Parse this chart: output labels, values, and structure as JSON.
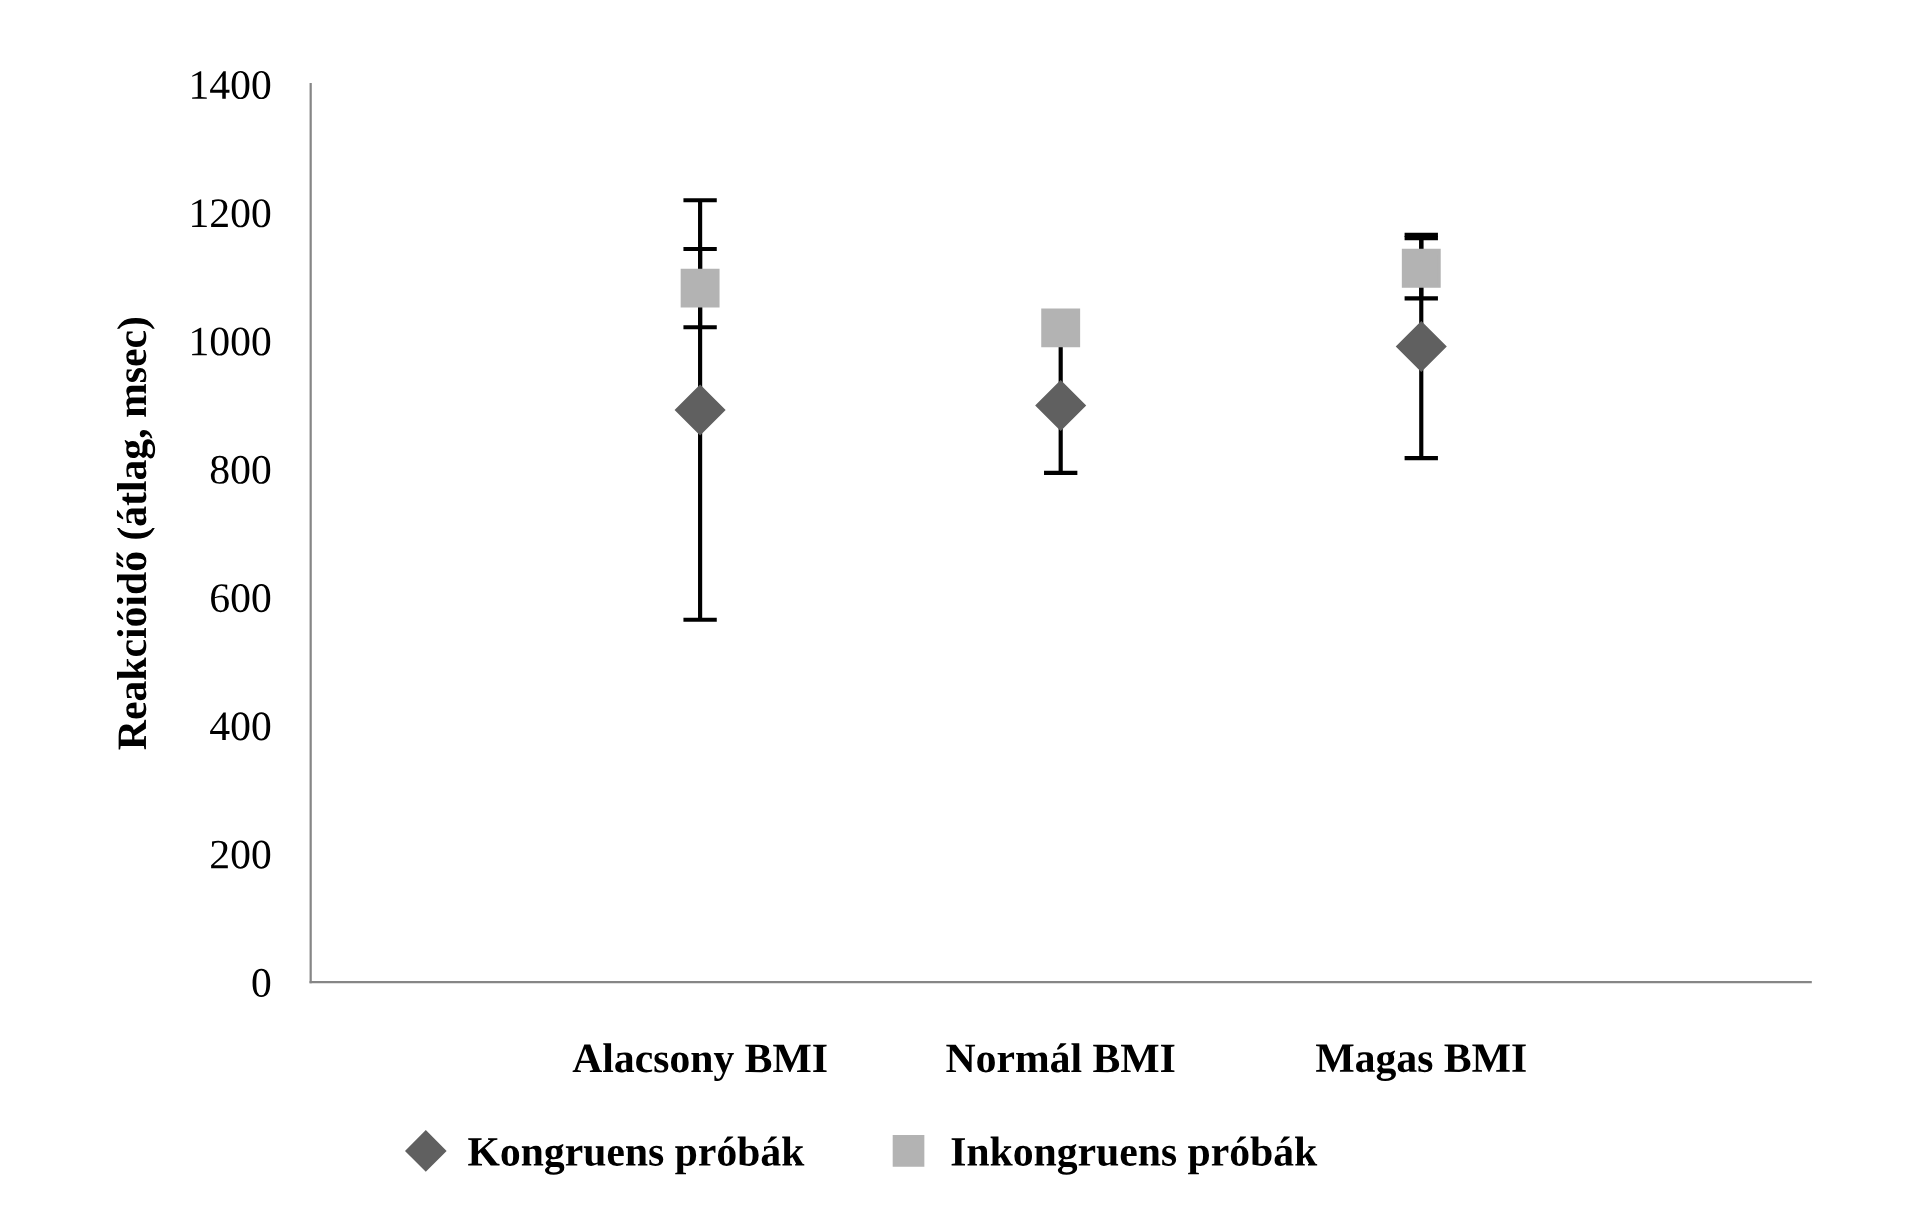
{
  "chart_data": {
    "type": "scatter",
    "ylabel": "Reakcióidő (átlag, msec)",
    "categories": [
      "Alacsony BMI",
      "Normál BMI",
      "Magas BMI"
    ],
    "series": [
      {
        "name": "Kongruens próbák",
        "color": "#606060",
        "marker": "diamond",
        "values": [
          892,
          899,
          991
        ],
        "errors": [
          327,
          105,
          174
        ]
      },
      {
        "name": "Inkongruens próbák",
        "color": "#b3b3b3",
        "marker": "square",
        "values": [
          1082,
          1020,
          1113
        ],
        "errors": [
          61,
          null,
          47
        ]
      }
    ],
    "ylim": [
      0,
      1400
    ],
    "yticks": [
      0,
      200,
      400,
      600,
      800,
      1000,
      1200,
      1400
    ],
    "grid": false,
    "legend": "bottom"
  }
}
